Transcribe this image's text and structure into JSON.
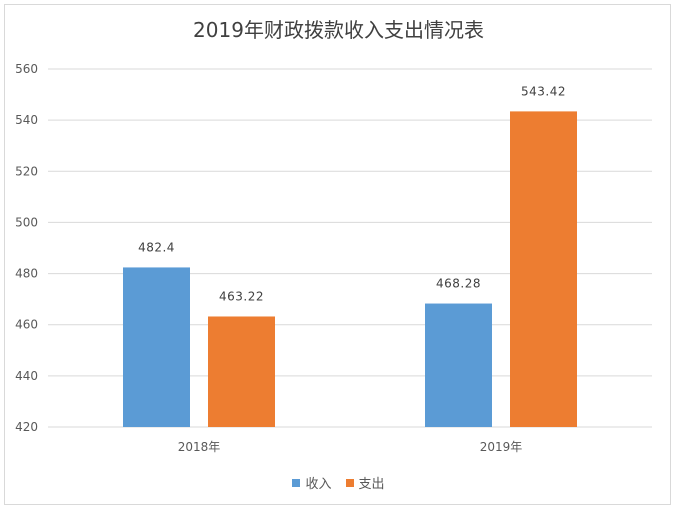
{
  "chart_data": {
    "type": "bar",
    "title": "2019年财政拨款收入支出情况表",
    "categories": [
      "2018年",
      "2019年"
    ],
    "series": [
      {
        "name": "收入",
        "values": [
          482.4,
          468.28
        ],
        "color": "#5b9bd5"
      },
      {
        "name": "支出",
        "values": [
          463.22,
          543.42
        ],
        "color": "#ed7d31"
      }
    ],
    "ylim": [
      420,
      560
    ],
    "yticks": [
      420,
      440,
      460,
      480,
      500,
      520,
      540,
      560
    ],
    "grid": true,
    "legend": "bottom"
  }
}
